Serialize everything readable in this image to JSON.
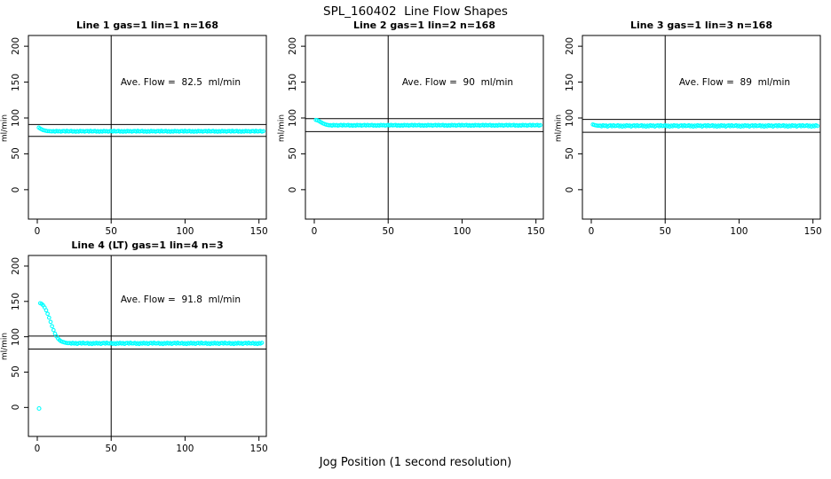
{
  "figure": {
    "title": "SPL_160402  Line Flow Shapes",
    "xlabel": "Jog Position (1 second resolution)"
  },
  "colors": {
    "points": "#00FFFF",
    "axis": "#000000",
    "background": "#FFFFFF"
  },
  "chart_data": [
    {
      "type": "scatter",
      "title": "Line 1 gas=1 lin=1 n=168",
      "annotation": "Ave. Flow =  82.5  ml/min",
      "ave_flow": 82.5,
      "ylabel": "ml/min",
      "x_ticks": [
        0,
        50,
        100,
        150
      ],
      "y_ticks": [
        0,
        50,
        100,
        150,
        200
      ],
      "xlim": [
        -6,
        155
      ],
      "ylim": [
        -41,
        215
      ],
      "vline_x": 50,
      "ref_lines": [
        90.8,
        74.3
      ],
      "annotation_pos": {
        "x": 97,
        "y": 150
      },
      "series": {
        "segments": [
          {
            "x_start": 1,
            "x_step": 1,
            "y": [
              86.5,
              85.2,
              84.0,
              83.1,
              82.5,
              82.0,
              81.7,
              81.5,
              81.4,
              81.3
            ]
          },
          {
            "x_start": 11,
            "x_end": 153,
            "x_step": 1,
            "base": 81.4,
            "pattern": [
              0.2,
              -0.4,
              0.5,
              -0.1,
              0.3,
              -0.5,
              0.1,
              0.4,
              -0.3,
              0.6,
              -0.2,
              0.0,
              0.5,
              -0.4,
              0.2,
              -0.6
            ]
          }
        ],
        "extra_points": []
      }
    },
    {
      "type": "scatter",
      "title": "Line 2 gas=1 lin=2 n=168",
      "annotation": "Ave. Flow =  90  ml/min",
      "ave_flow": 90,
      "ylabel": "ml/min",
      "x_ticks": [
        0,
        50,
        100,
        150
      ],
      "y_ticks": [
        0,
        50,
        100,
        150,
        200
      ],
      "xlim": [
        -6,
        155
      ],
      "ylim": [
        -41,
        215
      ],
      "vline_x": 50,
      "ref_lines": [
        99.0,
        81.0
      ],
      "annotation_pos": {
        "x": 97,
        "y": 150
      },
      "series": {
        "segments": [
          {
            "x_start": 1,
            "x_step": 1,
            "y": [
              97.3,
              96.8,
              95.9,
              94.7,
              93.4,
              92.3,
              91.4,
              90.7,
              90.2,
              89.9
            ]
          },
          {
            "x_start": 11,
            "x_end": 153,
            "x_step": 1,
            "base": 89.8,
            "pattern": [
              0.2,
              -0.4,
              0.5,
              -0.1,
              0.3,
              -0.5,
              0.1,
              0.4,
              -0.3,
              0.6,
              -0.2,
              0.0,
              0.5,
              -0.4,
              0.2,
              -0.6
            ]
          }
        ],
        "extra_points": []
      }
    },
    {
      "type": "scatter",
      "title": "Line 3 gas=1 lin=3 n=168",
      "annotation": "Ave. Flow =  89  ml/min",
      "ave_flow": 89,
      "ylabel": "ml/min",
      "x_ticks": [
        0,
        50,
        100,
        150
      ],
      "y_ticks": [
        0,
        50,
        100,
        150,
        200
      ],
      "xlim": [
        -6,
        155
      ],
      "ylim": [
        -41,
        215
      ],
      "vline_x": 50,
      "ref_lines": [
        97.9,
        80.1
      ],
      "annotation_pos": {
        "x": 97,
        "y": 150
      },
      "series": {
        "segments": [
          {
            "x_start": 1,
            "x_step": 1,
            "y": [
              90.8,
              90.2,
              89.7,
              89.4,
              89.2
            ]
          },
          {
            "x_start": 6,
            "x_end": 153,
            "x_step": 1,
            "base": 89.0,
            "pattern": [
              0.4,
              -0.7,
              0.8,
              -0.2,
              0.5,
              -0.9,
              0.2,
              0.7,
              -0.5,
              0.9,
              -0.3,
              0.1,
              0.8,
              -0.6,
              0.3,
              -1.0
            ]
          }
        ],
        "extra_points": []
      }
    },
    {
      "type": "scatter",
      "title": "Line 4 (LT) gas=1 lin=4 n=3",
      "annotation": "Ave. Flow =  91.8  ml/min",
      "ave_flow": 91.8,
      "ylabel": "ml/min",
      "x_ticks": [
        0,
        50,
        100,
        150
      ],
      "y_ticks": [
        0,
        50,
        100,
        150,
        200
      ],
      "xlim": [
        -6,
        155
      ],
      "ylim": [
        -41,
        215
      ],
      "vline_x": 50,
      "ref_lines": [
        101.0,
        82.6
      ],
      "annotation_pos": {
        "x": 97,
        "y": 152
      },
      "series": {
        "segments": [
          {
            "x_start": 2,
            "x_step": 1,
            "y": [
              147.5,
              146.5,
              144.5,
              141.5,
              137.5,
              132.5,
              127.0,
              121.0,
              115.0,
              109.5,
              104.5,
              100.5,
              97.5,
              95.3,
              93.8,
              92.8,
              92.1,
              91.6,
              91.2,
              90.9
            ]
          },
          {
            "x_start": 22,
            "x_end": 152,
            "x_step": 1,
            "base": 90.7,
            "pattern": [
              0.5,
              -0.5,
              0.7,
              -0.3,
              0.4,
              -0.8,
              0.2,
              0.6,
              -0.4,
              0.8,
              -0.2,
              0.0,
              0.6,
              -0.7,
              0.3,
              -0.9
            ]
          }
        ],
        "extra_points": [
          [
            1.2,
            -1.5
          ]
        ]
      }
    }
  ]
}
